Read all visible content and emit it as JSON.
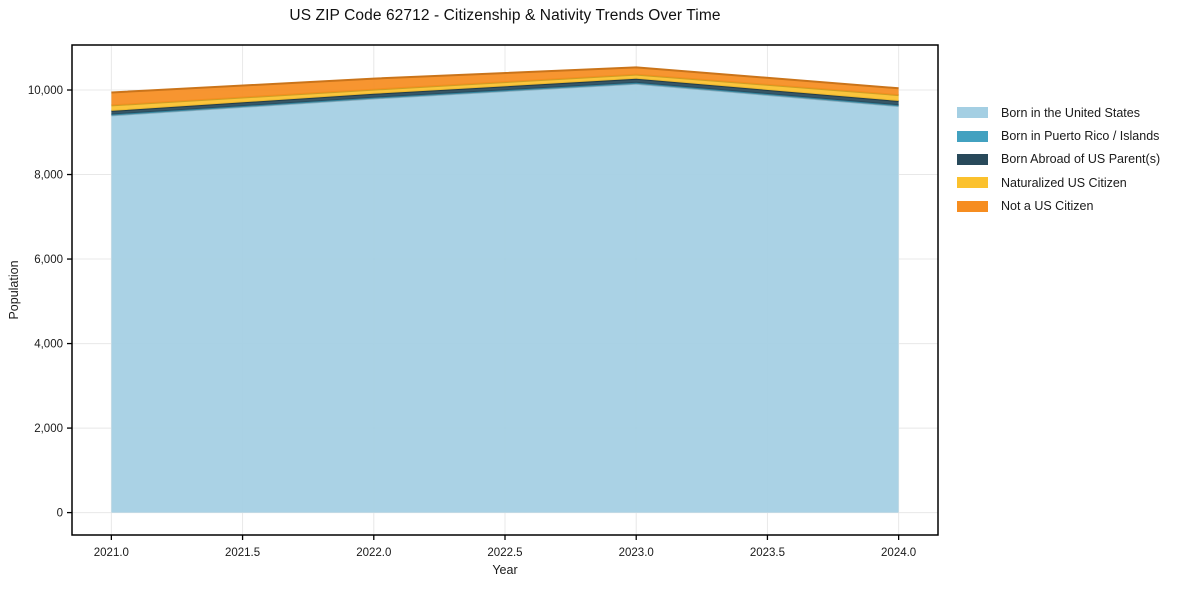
{
  "chart_data": {
    "type": "area",
    "stacked": true,
    "title": "US ZIP Code 62712 - Citizenship & Nativity Trends Over Time",
    "xlabel": "Year",
    "ylabel": "Population",
    "x": [
      2021,
      2022,
      2023,
      2024
    ],
    "series": [
      {
        "name": "Born in the United States",
        "color": "#a4cfe3",
        "values": [
          9400,
          9800,
          10150,
          9620
        ]
      },
      {
        "name": "Born in Puerto Rico / Islands",
        "color": "#42a1c0",
        "values": [
          20,
          20,
          20,
          20
        ]
      },
      {
        "name": "Born Abroad of US Parent(s)",
        "color": "#28495a",
        "values": [
          85,
          90,
          95,
          100
        ]
      },
      {
        "name": "Naturalized US Citizen",
        "color": "#fbc12d",
        "values": [
          130,
          100,
          100,
          140
        ]
      },
      {
        "name": "Not a US Citizen",
        "color": "#f68d20",
        "values": [
          305,
          260,
          170,
          160
        ]
      }
    ],
    "totals": [
      9940,
      10270,
      10535,
      10040
    ],
    "x_ticks": [
      2021.0,
      2021.5,
      2022.0,
      2022.5,
      2023.0,
      2023.5,
      2024.0
    ],
    "x_tick_labels": [
      "2021.0",
      "2021.5",
      "2022.0",
      "2022.5",
      "2023.0",
      "2023.5",
      "2024.0"
    ],
    "y_ticks": [
      0,
      2000,
      4000,
      6000,
      8000,
      10000
    ],
    "y_tick_labels": [
      "0",
      "2,000",
      "4,000",
      "6,000",
      "8,000",
      "10,000"
    ],
    "xlim": [
      2020.85,
      2024.15
    ],
    "ylim": [
      -530,
      11065
    ],
    "grid": true,
    "legend_position": "right",
    "colors": {
      "grid": "#e8e8e8",
      "spine": "#000000",
      "tick_label": "#1a1a1a",
      "background": "#ffffff"
    }
  }
}
